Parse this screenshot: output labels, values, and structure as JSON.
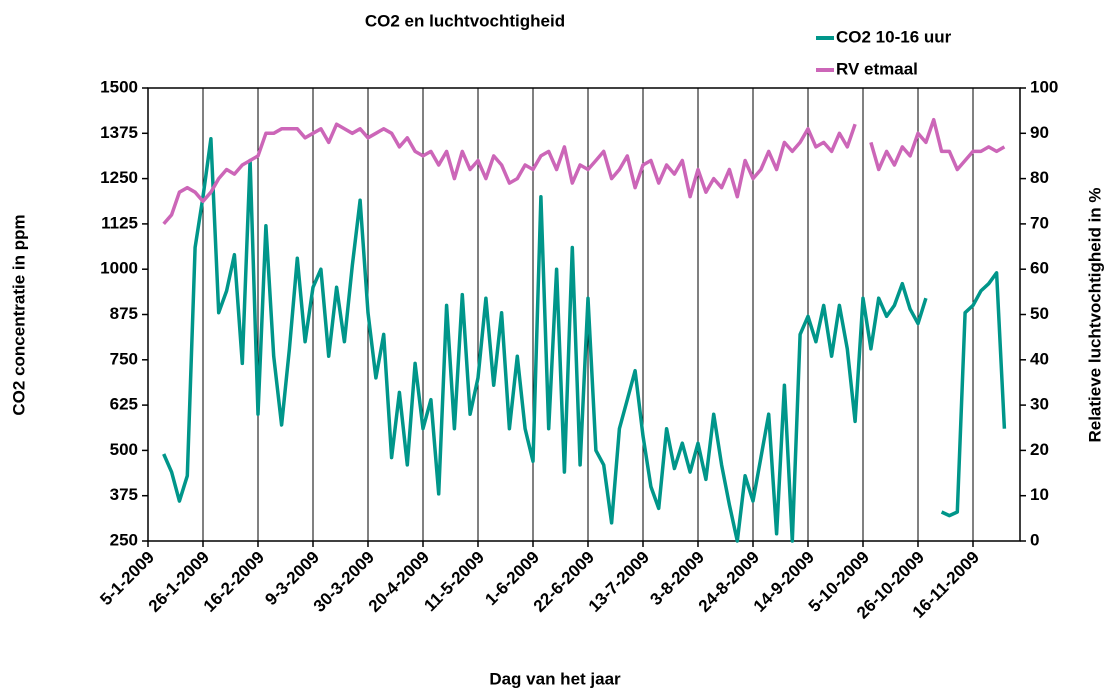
{
  "chart_data": {
    "type": "line",
    "title": "CO2 en luchtvochtigheid",
    "xlabel": "Dag van het jaar",
    "ylabel": "CO2 concentratie in ppm",
    "y2label": "Relatieve luchtvochtigheid in %",
    "categories": [
      "5-1-2009",
      null,
      null,
      null,
      null,
      null,
      null,
      "26-1-2009",
      null,
      null,
      null,
      null,
      null,
      null,
      "16-2-2009",
      null,
      null,
      null,
      null,
      null,
      null,
      "9-3-2009",
      null,
      null,
      null,
      null,
      null,
      null,
      "30-3-2009",
      null,
      null,
      null,
      null,
      null,
      null,
      "20-4-2009",
      null,
      null,
      null,
      null,
      null,
      null,
      "11-5-2009",
      null,
      null,
      null,
      null,
      null,
      null,
      "1-6-2009",
      null,
      null,
      null,
      null,
      null,
      null,
      "22-6-2009",
      null,
      null,
      null,
      null,
      null,
      null,
      "13-7-2009",
      null,
      null,
      null,
      null,
      null,
      null,
      "3-8-2009",
      null,
      null,
      null,
      null,
      null,
      null,
      "24-8-2009",
      null,
      null,
      null,
      null,
      null,
      null,
      "14-9-2009",
      null,
      null,
      null,
      null,
      null,
      null,
      "5-10-2009",
      null,
      null,
      null,
      null,
      null,
      null,
      "26-10-2009",
      null,
      null,
      null,
      null,
      null,
      null,
      "16-11-2009",
      null,
      null,
      null,
      null,
      null,
      null
    ],
    "series": [
      {
        "name": "CO2 10-16 uur",
        "color": "#00968a",
        "axis": "y",
        "values": [
          null,
          null,
          490,
          440,
          360,
          430,
          1060,
          1200,
          1360,
          880,
          940,
          1040,
          740,
          1300,
          600,
          1120,
          760,
          570,
          780,
          1030,
          800,
          950,
          1000,
          760,
          950,
          800,
          1010,
          1190,
          880,
          700,
          820,
          480,
          660,
          460,
          740,
          560,
          640,
          380,
          900,
          560,
          930,
          600,
          700,
          920,
          680,
          880,
          560,
          760,
          560,
          470,
          1200,
          560,
          1000,
          440,
          1060,
          460,
          920,
          500,
          460,
          300,
          560,
          640,
          720,
          540,
          400,
          340,
          560,
          450,
          520,
          440,
          520,
          420,
          600,
          460,
          350,
          250,
          430,
          360,
          480,
          600,
          270,
          680,
          250,
          820,
          870,
          800,
          900,
          760,
          900,
          780,
          580,
          920,
          780,
          920,
          870,
          900,
          960,
          890,
          850,
          920,
          null,
          330,
          320,
          330,
          880,
          900,
          940,
          960,
          990,
          560,
          null,
          null
        ]
      },
      {
        "name": "RV etmaal",
        "color": "#cc66b8",
        "axis": "y2",
        "values": [
          null,
          null,
          70,
          72,
          77,
          78,
          77,
          75,
          77,
          80,
          82,
          81,
          83,
          84,
          85,
          90,
          90,
          91,
          91,
          91,
          89,
          90,
          91,
          88,
          92,
          91,
          90,
          91,
          89,
          90,
          91,
          90,
          87,
          89,
          86,
          85,
          86,
          83,
          86,
          80,
          86,
          82,
          84,
          80,
          85,
          83,
          79,
          80,
          83,
          82,
          85,
          86,
          82,
          87,
          79,
          83,
          82,
          84,
          86,
          80,
          82,
          85,
          78,
          83,
          84,
          79,
          83,
          81,
          84,
          76,
          82,
          77,
          80,
          78,
          82,
          76,
          84,
          80,
          82,
          86,
          82,
          88,
          86,
          88,
          91,
          87,
          88,
          86,
          90,
          87,
          92,
          null,
          88,
          82,
          86,
          83,
          87,
          85,
          90,
          88,
          93,
          86,
          86,
          82,
          84,
          86,
          86,
          87,
          86,
          87,
          null,
          null
        ]
      }
    ],
    "ylim": [
      250,
      1500
    ],
    "yticks": [
      250,
      375,
      500,
      625,
      750,
      875,
      1000,
      1125,
      1250,
      1375,
      1500
    ],
    "y2lim": [
      0,
      100
    ],
    "y2ticks": [
      0,
      10,
      20,
      30,
      40,
      50,
      60,
      70,
      80,
      90,
      100
    ],
    "xgrid": true,
    "legend": "top-right"
  }
}
